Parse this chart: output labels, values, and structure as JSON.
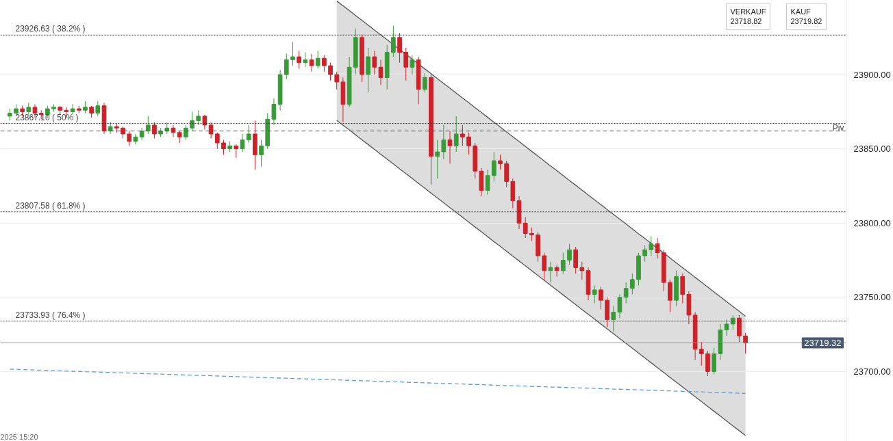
{
  "chart_data": {
    "type": "candlestick",
    "categories": [
      null,
      null,
      null,
      null,
      null,
      null,
      null,
      null,
      null,
      null,
      null,
      null,
      null,
      null,
      null,
      null,
      null,
      null,
      null,
      null,
      null,
      null,
      null,
      null,
      null,
      null,
      null,
      null,
      null,
      null,
      null,
      null,
      null,
      null,
      null,
      null,
      null,
      null,
      null,
      null,
      null,
      null,
      null,
      null,
      null,
      null,
      null,
      null,
      null,
      null,
      null,
      null,
      null,
      null,
      null,
      null,
      null,
      null,
      null,
      null,
      null,
      null,
      null,
      null,
      null,
      null,
      null,
      null,
      null,
      null,
      null,
      null,
      null,
      null,
      null,
      null,
      null,
      null,
      null,
      null,
      null,
      null,
      null,
      null,
      null,
      null,
      null,
      null,
      null,
      null,
      null,
      null,
      null,
      null,
      null,
      null,
      null,
      null,
      null,
      null,
      null,
      null,
      null,
      null,
      null,
      null,
      null,
      null,
      null,
      null,
      null,
      null,
      null,
      null,
      null,
      null,
      null,
      null
    ],
    "ohlc": [
      [
        23872,
        23877,
        23869,
        23874
      ],
      [
        23874,
        23880,
        23872,
        23877
      ],
      [
        23877,
        23879,
        23872,
        23875
      ],
      [
        23875,
        23881,
        23873,
        23878
      ],
      [
        23878,
        23880,
        23871,
        23874
      ],
      [
        23874,
        23876,
        23870,
        23873
      ],
      [
        23873,
        23879,
        23871,
        23877
      ],
      [
        23877,
        23880,
        23875,
        23878
      ],
      [
        23878,
        23879,
        23873,
        23876
      ],
      [
        23876,
        23878,
        23872,
        23875
      ],
      [
        23875,
        23880,
        23873,
        23877
      ],
      [
        23877,
        23879,
        23874,
        23876
      ],
      [
        23876,
        23882,
        23874,
        23878
      ],
      [
        23878,
        23879,
        23871,
        23874
      ],
      [
        23874,
        23882,
        23872,
        23879
      ],
      [
        23879,
        23881,
        23860,
        23862
      ],
      [
        23862,
        23868,
        23860,
        23865
      ],
      [
        23865,
        23867,
        23861,
        23864
      ],
      [
        23864,
        23865,
        23857,
        23860
      ],
      [
        23860,
        23862,
        23852,
        23855
      ],
      [
        23855,
        23860,
        23853,
        23858
      ],
      [
        23858,
        23864,
        23856,
        23862
      ],
      [
        23862,
        23872,
        23860,
        23866
      ],
      [
        23866,
        23868,
        23857,
        23860
      ],
      [
        23860,
        23864,
        23858,
        23862
      ],
      [
        23862,
        23868,
        23860,
        23864
      ],
      [
        23864,
        23866,
        23858,
        23861
      ],
      [
        23861,
        23862,
        23854,
        23858
      ],
      [
        23858,
        23866,
        23856,
        23864
      ],
      [
        23864,
        23875,
        23862,
        23869
      ],
      [
        23869,
        23876,
        23866,
        23872
      ],
      [
        23872,
        23873,
        23863,
        23866
      ],
      [
        23866,
        23868,
        23857,
        23860
      ],
      [
        23860,
        23861,
        23850,
        23854
      ],
      [
        23854,
        23856,
        23846,
        23850
      ],
      [
        23850,
        23855,
        23848,
        23852
      ],
      [
        23852,
        23853,
        23844,
        23850
      ],
      [
        23850,
        23860,
        23848,
        23856
      ],
      [
        23856,
        23866,
        23854,
        23860
      ],
      [
        23860,
        23869,
        23836,
        23846
      ],
      [
        23846,
        23856,
        23838,
        23852
      ],
      [
        23852,
        23874,
        23850,
        23870
      ],
      [
        23870,
        23884,
        23866,
        23880
      ],
      [
        23880,
        23903,
        23876,
        23900
      ],
      [
        23900,
        23914,
        23897,
        23910
      ],
      [
        23910,
        23922,
        23906,
        23912
      ],
      [
        23912,
        23916,
        23904,
        23908
      ],
      [
        23908,
        23915,
        23905,
        23910
      ],
      [
        23910,
        23914,
        23902,
        23906
      ],
      [
        23906,
        23916,
        23904,
        23911
      ],
      [
        23911,
        23913,
        23902,
        23906
      ],
      [
        23906,
        23908,
        23896,
        23900
      ],
      [
        23900,
        23902,
        23890,
        23895
      ],
      [
        23895,
        23898,
        23868,
        23880
      ],
      [
        23880,
        23912,
        23878,
        23905
      ],
      [
        23905,
        23931,
        23900,
        23925
      ],
      [
        23925,
        23927,
        23895,
        23900
      ],
      [
        23900,
        23918,
        23888,
        23912
      ],
      [
        23912,
        23916,
        23900,
        23905
      ],
      [
        23905,
        23910,
        23893,
        23898
      ],
      [
        23898,
        23920,
        23890,
        23915
      ],
      [
        23915,
        23933,
        23912,
        23925
      ],
      [
        23925,
        23928,
        23908,
        23915
      ],
      [
        23915,
        23918,
        23896,
        23905
      ],
      [
        23905,
        23913,
        23900,
        23910
      ],
      [
        23910,
        23912,
        23880,
        23890
      ],
      [
        23890,
        23901,
        23888,
        23898
      ],
      [
        23898,
        23900,
        23826,
        23845
      ],
      [
        23845,
        23856,
        23830,
        23848
      ],
      [
        23848,
        23866,
        23843,
        23856
      ],
      [
        23856,
        23862,
        23840,
        23852
      ],
      [
        23852,
        23872,
        23848,
        23860
      ],
      [
        23860,
        23866,
        23852,
        23858
      ],
      [
        23858,
        23861,
        23846,
        23852
      ],
      [
        23852,
        23854,
        23830,
        23835
      ],
      [
        23835,
        23837,
        23818,
        23822
      ],
      [
        23822,
        23836,
        23819,
        23832
      ],
      [
        23832,
        23848,
        23828,
        23842
      ],
      [
        23842,
        23846,
        23836,
        23840
      ],
      [
        23840,
        23842,
        23824,
        23828
      ],
      [
        23828,
        23830,
        23810,
        23815
      ],
      [
        23815,
        23818,
        23796,
        23800
      ],
      [
        23800,
        23804,
        23790,
        23793
      ],
      [
        23793,
        23797,
        23788,
        23792
      ],
      [
        23792,
        23794,
        23774,
        23778
      ],
      [
        23778,
        23780,
        23762,
        23768
      ],
      [
        23768,
        23774,
        23760,
        23770
      ],
      [
        23770,
        23772,
        23764,
        23768
      ],
      [
        23768,
        23780,
        23766,
        23775
      ],
      [
        23775,
        23786,
        23772,
        23782
      ],
      [
        23782,
        23784,
        23766,
        23770
      ],
      [
        23770,
        23774,
        23762,
        23768
      ],
      [
        23768,
        23770,
        23748,
        23752
      ],
      [
        23752,
        23758,
        23746,
        23755
      ],
      [
        23755,
        23757,
        23742,
        23748
      ],
      [
        23748,
        23750,
        23730,
        23735
      ],
      [
        23735,
        23744,
        23727,
        23740
      ],
      [
        23740,
        23752,
        23736,
        23750
      ],
      [
        23750,
        23760,
        23746,
        23756
      ],
      [
        23756,
        23766,
        23752,
        23762
      ],
      [
        23762,
        23780,
        23758,
        23778
      ],
      [
        23778,
        23785,
        23774,
        23782
      ],
      [
        23782,
        23791,
        23778,
        23786
      ],
      [
        23786,
        23790,
        23776,
        23780
      ],
      [
        23780,
        23782,
        23754,
        23760
      ],
      [
        23760,
        23762,
        23740,
        23748
      ],
      [
        23748,
        23768,
        23744,
        23764
      ],
      [
        23764,
        23766,
        23746,
        23752
      ],
      [
        23752,
        23754,
        23732,
        23738
      ],
      [
        23738,
        23740,
        23708,
        23715
      ],
      [
        23715,
        23720,
        23704,
        23712
      ],
      [
        23712,
        23714,
        23697,
        23700
      ],
      [
        23700,
        23716,
        23698,
        23712
      ],
      [
        23712,
        23732,
        23708,
        23728
      ],
      [
        23728,
        23735,
        23724,
        23732
      ],
      [
        23732,
        23738,
        23728,
        23736
      ],
      [
        23736,
        23738,
        23720,
        23724
      ],
      [
        23724,
        23726,
        23712,
        23719.32
      ]
    ],
    "colors": [
      "#3a9a3a",
      "#3a9a3a",
      "#cc2229",
      "#3a9a3a",
      "#cc2229",
      "#cc2229",
      "#3a9a3a",
      "#3a9a3a",
      "#cc2229",
      "#cc2229",
      "#3a9a3a",
      "#cc2229",
      "#3a9a3a",
      "#cc2229",
      "#3a9a3a",
      "#cc2229",
      "#3a9a3a",
      "#cc2229",
      "#cc2229",
      "#cc2229",
      "#3a9a3a",
      "#3a9a3a",
      "#3a9a3a",
      "#cc2229",
      "#3a9a3a",
      "#3a9a3a",
      "#cc2229",
      "#cc2229",
      "#3a9a3a",
      "#3a9a3a",
      "#3a9a3a",
      "#cc2229",
      "#cc2229",
      "#cc2229",
      "#cc2229",
      "#3a9a3a",
      "#cc2229",
      "#3a9a3a",
      "#3a9a3a",
      "#cc2229",
      "#3a9a3a",
      "#3a9a3a",
      "#3a9a3a",
      "#3a9a3a",
      "#3a9a3a",
      "#3a9a3a",
      "#cc2229",
      "#3a9a3a",
      "#cc2229",
      "#3a9a3a",
      "#cc2229",
      "#cc2229",
      "#cc2229",
      "#cc2229",
      "#3a9a3a",
      "#3a9a3a",
      "#cc2229",
      "#3a9a3a",
      "#cc2229",
      "#cc2229",
      "#3a9a3a",
      "#3a9a3a",
      "#cc2229",
      "#cc2229",
      "#3a9a3a",
      "#cc2229",
      "#3a9a3a",
      "#cc2229",
      "#3a9a3a",
      "#3a9a3a",
      "#cc2229",
      "#3a9a3a",
      "#cc2229",
      "#cc2229",
      "#cc2229",
      "#cc2229",
      "#3a9a3a",
      "#3a9a3a",
      "#cc2229",
      "#cc2229",
      "#cc2229",
      "#cc2229",
      "#cc2229",
      "#cc2229",
      "#cc2229",
      "#cc2229",
      "#3a9a3a",
      "#cc2229",
      "#3a9a3a",
      "#3a9a3a",
      "#cc2229",
      "#cc2229",
      "#cc2229",
      "#3a9a3a",
      "#cc2229",
      "#cc2229",
      "#3a9a3a",
      "#3a9a3a",
      "#3a9a3a",
      "#3a9a3a",
      "#3a9a3a",
      "#3a9a3a",
      "#3a9a3a",
      "#cc2229",
      "#cc2229",
      "#cc2229",
      "#3a9a3a",
      "#cc2229",
      "#cc2229",
      "#cc2229",
      "#cc2229",
      "#cc2229",
      "#3a9a3a",
      "#3a9a3a",
      "#3a9a3a",
      "#3a9a3a",
      "#cc2229",
      "#cc2229"
    ],
    "series": [
      {
        "type": "line",
        "color": "#555555",
        "values": [
          null,
          null,
          null,
          null,
          null,
          null,
          null,
          null,
          null,
          null,
          null,
          null,
          null,
          null,
          null,
          null,
          null,
          null,
          null,
          null,
          null,
          null,
          null,
          null,
          null,
          null,
          null,
          null,
          null,
          null,
          null,
          null,
          null,
          null,
          null,
          null,
          null,
          null,
          null,
          null,
          null,
          null,
          null,
          null,
          null,
          null,
          null,
          null,
          null,
          null,
          null,
          null,
          23869.2,
          23865.9,
          23862.7,
          23859.4,
          23856.1,
          23852.9,
          23849.6,
          23846.3,
          23843.1,
          23839.8,
          23836.5,
          23833.3,
          23830.0,
          23826.7,
          23823.5,
          23820.2,
          23816.9,
          23813.7,
          23810.4,
          23807.1,
          23803.9,
          23800.6,
          23797.3,
          23794.1,
          23790.8,
          23787.5,
          23784.3,
          23781.0,
          23777.7,
          23774.5,
          23771.2,
          23767.9,
          23764.7,
          23761.4,
          23758.1,
          23754.9,
          23751.6,
          23748.3,
          23745.1,
          23741.8,
          23738.5,
          23735.3,
          23732.0,
          23728.7,
          23725.5,
          23722.2,
          23719.0,
          23715.7,
          23712.4,
          23709.2,
          23705.9,
          23702.6,
          23699.4,
          23696.1,
          23692.8,
          23689.6,
          23686.3,
          23683.0,
          23679.8,
          23676.5,
          23673.2,
          23670.0,
          23666.7,
          23663.4,
          23660.2,
          23656.9
        ]
      },
      {
        "type": "line",
        "color": "#555555",
        "upper": [
          null,
          null,
          null,
          null,
          null,
          null,
          null,
          null,
          null,
          null,
          null,
          null,
          null,
          null,
          null,
          null,
          null,
          null,
          null,
          null,
          null,
          null,
          null,
          null,
          null,
          null,
          null,
          null,
          null,
          null,
          null,
          null,
          null,
          null,
          null,
          null,
          null,
          null,
          null,
          null,
          null,
          null,
          null,
          null,
          null,
          null,
          null,
          null,
          null,
          null,
          null,
          null,
          23949.6,
          23946.3,
          23943.1,
          23939.8,
          23936.5,
          23933.3,
          23930.0,
          23926.7,
          23923.5,
          23920.2,
          23916.9,
          23913.7,
          23910.4,
          23907.1,
          23903.9,
          23900.6,
          23897.3,
          23894.1,
          23890.8,
          23887.5,
          23884.3,
          23881.0,
          23877.7,
          23874.5,
          23871.2,
          23867.9,
          23864.7,
          23861.4,
          23858.1,
          23854.9,
          23851.6,
          23848.3,
          23845.1,
          23841.8,
          23838.5,
          23835.3,
          23832.0,
          23828.7,
          23825.5,
          23822.2,
          23818.9,
          23815.7,
          23812.4,
          23809.1,
          23805.9,
          23802.6,
          23799.4,
          23796.1,
          23792.8,
          23789.6,
          23786.3,
          23783.0,
          23779.8,
          23776.5,
          23773.2,
          23770.0,
          23766.7,
          23763.4,
          23760.2,
          23756.9,
          23753.6,
          23750.4,
          23747.1,
          23743.8,
          23740.6,
          23737.3
        ],
        "values": [
          null,
          null,
          null,
          null,
          null,
          null,
          null,
          null,
          null,
          null,
          null,
          null,
          null,
          null,
          null,
          null,
          null,
          null,
          null,
          null,
          null,
          null,
          null,
          null,
          null,
          null,
          null,
          null,
          null,
          null,
          null,
          null,
          null,
          null,
          null,
          null,
          null,
          null,
          null,
          null,
          null,
          null,
          null,
          null,
          null,
          null,
          null,
          null,
          null,
          null,
          null,
          null,
          23949.6,
          23946.3,
          23943.1,
          23939.8,
          23936.5,
          23933.3,
          23930.0,
          23926.7,
          23923.5,
          23920.2,
          23916.9,
          23913.7,
          23910.4,
          23907.1,
          23903.9,
          23900.6,
          23897.3,
          23894.1,
          23890.8,
          23887.5,
          23884.3,
          23881.0,
          23877.7,
          23874.5,
          23871.2,
          23867.9,
          23864.7,
          23861.4,
          23858.1,
          23854.9,
          23851.6,
          23848.3,
          23845.1,
          23841.8,
          23838.5,
          23835.3,
          23832.0,
          23828.7,
          23825.5,
          23822.2,
          23818.9,
          23815.7,
          23812.4,
          23809.1,
          23805.9,
          23802.6,
          23799.4,
          23796.1,
          23792.8,
          23789.6,
          23786.3,
          23783.0,
          23779.8,
          23776.5,
          23773.2,
          23770.0,
          23766.7,
          23763.4,
          23760.2,
          23756.9,
          23753.6,
          23750.4,
          23747.1,
          23743.8,
          23740.6,
          23737.3
        ],
        "lower": [
          null,
          null,
          null,
          null,
          null,
          null,
          null,
          null,
          null,
          null,
          null,
          null,
          null,
          null,
          null,
          null,
          null,
          null,
          null,
          null,
          null,
          null,
          null,
          null,
          null,
          null,
          null,
          null,
          null,
          null,
          null,
          null,
          null,
          null,
          null,
          null,
          null,
          null,
          null,
          null,
          null,
          null,
          null,
          null,
          null,
          null,
          null,
          null,
          null,
          null,
          null,
          null,
          23869.2,
          23865.9,
          23862.7,
          23859.4,
          23856.1,
          23852.9,
          23849.6,
          23846.3,
          23843.1,
          23839.8,
          23836.5,
          23833.3,
          23830.0,
          23826.7,
          23823.5,
          23820.2,
          23816.9,
          23813.7,
          23810.4,
          23807.1,
          23803.9,
          23800.6,
          23797.3,
          23794.1,
          23790.8,
          23787.5,
          23784.3,
          23781.0,
          23777.7,
          23774.5,
          23771.2,
          23767.9,
          23764.7,
          23761.4,
          23758.1,
          23754.9,
          23751.6,
          23748.3,
          23745.1,
          23741.8,
          23738.5,
          23735.3,
          23732.0,
          23728.7,
          23725.5,
          23722.2,
          23719.0,
          23715.7,
          23712.4,
          23709.2,
          23705.9,
          23702.6,
          23699.4,
          23696.1,
          23692.8,
          23689.6,
          23686.3,
          23683.0,
          23679.8,
          23676.5,
          23673.2,
          23670.0,
          23666.7,
          23663.4,
          23660.2,
          23656.9
        ]
      },
      {
        "type": "line",
        "color": "#5b9bd5",
        "line_style": "dashed",
        "values": [
          23701.6,
          23701.5,
          23701.3,
          23701.2,
          23701.0,
          23700.9,
          23700.8,
          23700.6,
          23700.5,
          23700.3,
          23700.2,
          23700.1,
          23699.9,
          23699.8,
          23699.7,
          23699.5,
          23699.4,
          23699.2,
          23699.1,
          23699.0,
          23698.8,
          23698.7,
          23698.5,
          23698.4,
          23698.3,
          23698.1,
          23698.0,
          23697.8,
          23697.7,
          23697.6,
          23697.4,
          23697.3,
          23697.2,
          23697.0,
          23696.9,
          23696.7,
          23696.6,
          23696.5,
          23696.3,
          23696.2,
          23696.0,
          23695.9,
          23695.8,
          23695.6,
          23695.5,
          23695.3,
          23695.2,
          23695.1,
          23694.9,
          23694.8,
          23694.6,
          23694.5,
          23694.4,
          23694.2,
          23694.1,
          23693.9,
          23693.8,
          23693.7,
          23693.5,
          23693.4,
          23693.3,
          23693.1,
          23693.0,
          23692.8,
          23692.7,
          23692.6,
          23692.4,
          23692.3,
          23692.1,
          23692.0,
          23691.9,
          23691.7,
          23691.6,
          23691.4,
          23691.3,
          23691.2,
          23691.0,
          23690.9,
          23690.7,
          23690.6,
          23690.5,
          23690.3,
          23690.2,
          23690.0,
          23689.9,
          23689.8,
          23689.6,
          23689.5,
          23689.4,
          23689.2,
          23689.1,
          23688.9,
          23688.8,
          23688.7,
          23688.5,
          23688.4,
          23688.2,
          23688.1,
          23688.0,
          23687.8,
          23687.7,
          23687.5,
          23687.4,
          23687.3,
          23687.1,
          23687.0,
          23686.8,
          23686.7,
          23686.6,
          23686.4,
          23686.3,
          23686.1,
          23686.0,
          23685.9,
          23685.7,
          23685.6,
          23685.4,
          23685.3
        ]
      }
    ],
    "ylim": [
      23653,
      23950
    ],
    "yticks": [
      {
        "value": 23700,
        "label": "23700.00"
      },
      {
        "value": 23750,
        "label": "23750.00"
      },
      {
        "value": 23800,
        "label": "23800.00"
      },
      {
        "value": 23850,
        "label": "23850.00"
      },
      {
        "value": 23900,
        "label": "23900.00"
      }
    ],
    "tick_labels": "y",
    "grid": "y",
    "ref_lines": [
      {
        "axis": "y",
        "value": 23926.63,
        "label": "23926.63 ( 38.2% )",
        "line_style": "dotted",
        "color": "#333333"
      },
      {
        "axis": "y",
        "value": 23867.1,
        "label": "23867.10 ( 50% )",
        "line_style": "dotted",
        "color": "#333333"
      },
      {
        "axis": "y",
        "value": 23807.58,
        "label": "23807.58 ( 61.8% )",
        "line_style": "dotted",
        "color": "#333333"
      },
      {
        "axis": "y",
        "value": 23733.93,
        "label": "23733.93 ( 76.4% )",
        "line_style": "dotted",
        "color": "#333333"
      },
      {
        "axis": "y",
        "value": 23862,
        "label": "Piv",
        "line_style": "dashed",
        "color": "#555555"
      },
      {
        "axis": "y",
        "value": 23719.32,
        "label": "23719.32",
        "line_style": "solid",
        "color": "#8f969c"
      }
    ],
    "annotations": [
      "VERKAUF",
      "23718.82",
      "KAUF",
      "23719.82",
      "2025 15:20"
    ]
  }
}
